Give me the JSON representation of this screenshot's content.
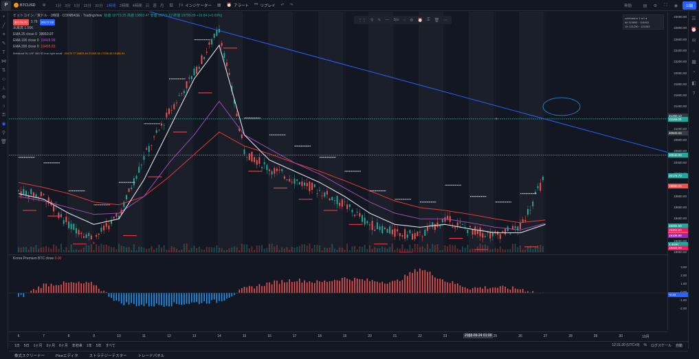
{
  "topbar": {
    "logo": "P",
    "symbol": "BTCUSD",
    "timeframes": [
      "1分",
      "3分",
      "5分",
      "15分",
      "30分",
      "1時間",
      "2時間",
      "4時間",
      "日",
      "週",
      "月"
    ],
    "active_timeframe": "1時間",
    "indicators_label": "インジケーター",
    "alert_label": "アラート",
    "replay_label": "リプレイ",
    "weather_label": "無題",
    "publish_label": "公開"
  },
  "legend": {
    "title": "ビットコイン／米ドル · 1時間 · COINBASE · TradingView",
    "ohlc": "始値 19773.25 高値 19803.47 安値 19771.12 終値 19790.09 +16.84 (+0.09%)",
    "price_sell": "20175.70",
    "spread": "3.78",
    "price_buy": "20177.00",
    "volume": "出来高 1.56K",
    "ema25": "EMA 25 close 0",
    "ema25_val": "19910.97",
    "ema100": "EMA 100 close 0",
    "ema100_val": "19415.99",
    "ema200": "EMA 200 close 0",
    "ema200_val": "19455.83",
    "line5": "Breakout HL LHF 360 92 true right small",
    "line5_vals": "20478.77  18829.84  21463.38  17336.48  19186.94"
  },
  "subpane": {
    "title": "Korea Premium BTC close",
    "value": "0.00"
  },
  "price_scale": {
    "ticks": [
      "23000.00",
      "22800.00",
      "22600.00",
      "22400.00",
      "22200.00",
      "22000.00",
      "21800.00",
      "21600.00",
      "21400.00",
      "21200.00",
      "21000.00",
      "20800.00",
      "20600.00",
      "20400.00",
      "20200.00",
      "20000.00",
      "19800.00",
      "19600.00",
      "19400.00",
      "19200.00",
      "19000.00",
      "18800.00"
    ],
    "tags": [
      {
        "label": "21250.13",
        "color": "#363a45"
      },
      {
        "label": "21185.00",
        "color": "#26a69a"
      },
      {
        "label": "20933.04",
        "color": "#363a45"
      },
      {
        "label": "20540.00",
        "color": "#26a69a"
      },
      {
        "label": "20175.70",
        "color": "#26a69a"
      },
      {
        "label": "19990.00",
        "color": "#ef5350"
      },
      {
        "label": "19284.00",
        "color": "#26a69a"
      },
      {
        "label": "19202.00",
        "color": "#e91e63"
      },
      {
        "label": "19126.94",
        "color": "#ef5350"
      },
      {
        "label": "19109.89",
        "color": "#9c27b0"
      },
      {
        "label": "1.464K",
        "color": "#26a69a"
      },
      {
        "label": "19463.00",
        "color": "#e91e63"
      }
    ],
    "sub_ticks": [
      "3.00",
      "2.00",
      "1.00",
      "0.00",
      "-1.00",
      "-2.00"
    ],
    "sub_tag": "-0.24"
  },
  "time_scale": {
    "labels": [
      "6",
      "7",
      "8",
      "9",
      "10",
      "11",
      "12",
      "13",
      "14",
      "15",
      "16",
      "17",
      "18",
      "19",
      "20",
      "21",
      "22",
      "23",
      "24",
      "25",
      "26",
      "27",
      "28",
      "29",
      "30",
      "10月"
    ],
    "cursor": "2022-09-24  01:00"
  },
  "range_bar": {
    "ranges": [
      "1日",
      "5日",
      "1ヶ月",
      "3ヶ月",
      "6ヶ月",
      "年初来",
      "1年",
      "5年",
      "すべて"
    ],
    "time": "12:31:20 (UTC+9)",
    "percent": "%",
    "log": "ログスケール",
    "auto": "自動"
  },
  "bottom_tabs": [
    "株式スクリーナー",
    "Pineエディタ",
    "ストラテジーテスター",
    "トレードパネル"
  ],
  "ticker_box": {
    "row1": "coinbase ▸ 1 ◂ 1 ◂",
    "row2": "bit   119890 · 118463",
    "row3": "1H    121230 · 121063"
  },
  "chart_data": {
    "type": "line",
    "ylim": [
      18800,
      23100
    ],
    "x_labels": [
      "6",
      "7",
      "8",
      "9",
      "10",
      "11",
      "12",
      "13",
      "14",
      "15",
      "16",
      "17",
      "18",
      "19",
      "20",
      "21",
      "22",
      "23",
      "24",
      "25",
      "26",
      "27"
    ],
    "close_series": [
      19900,
      19800,
      19300,
      19050,
      19450,
      20500,
      21300,
      22000,
      22800,
      20600,
      20300,
      20100,
      19900,
      19650,
      19300,
      19150,
      19100,
      19400,
      19200,
      19100,
      19250,
      20175
    ],
    "ema25": [
      19850,
      19750,
      19500,
      19300,
      19400,
      20100,
      21000,
      21900,
      22500,
      20900,
      20450,
      20250,
      20050,
      19800,
      19500,
      19300,
      19250,
      19300,
      19220,
      19150,
      19150,
      19300
    ],
    "ema100": [
      19800,
      19720,
      19600,
      19480,
      19500,
      19800,
      20400,
      20900,
      21500,
      20900,
      20650,
      20400,
      20200,
      19950,
      19700,
      19500,
      19400,
      19400,
      19330,
      19250,
      19200,
      19320
    ],
    "ema200": [
      20050,
      19960,
      19850,
      19700,
      19650,
      19800,
      20150,
      20550,
      20950,
      20700,
      20560,
      20400,
      20250,
      20080,
      19900,
      19720,
      19600,
      19550,
      19480,
      19400,
      19330,
      19380
    ],
    "korea_premium": [
      -0.6,
      1.0,
      1.2,
      1.1,
      -1.2,
      -1.5,
      -1.4,
      -1.2,
      -1.0,
      0.5,
      1.2,
      1.6,
      1.3,
      1.8,
      1.5,
      1.3,
      3.0,
      1.5,
      0.6,
      0.7,
      0.5,
      -0.2
    ],
    "trendline": [
      [
        4.4,
        23200
      ],
      [
        21.8,
        20550
      ]
    ],
    "h_levels": [
      21185,
      20540
    ],
    "colors": {
      "close": "#26a69a",
      "ema25": "#e0e3eb",
      "ema100": "#9c4fb0",
      "ema200": "#e53935",
      "trend": "#2962ff",
      "levels": "#26a69a"
    }
  }
}
